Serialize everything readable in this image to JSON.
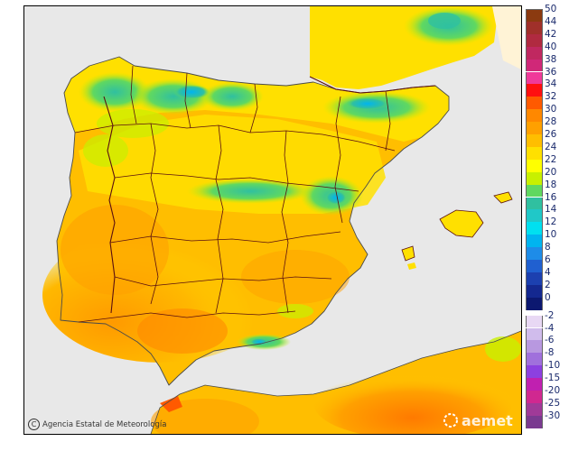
{
  "map": {
    "credit": "Agencia Estatal de Meteorología",
    "logo": "aemet",
    "copyright_symbol": "C"
  },
  "legend": {
    "positive": [
      {
        "label": "50",
        "color": "#8b3a10"
      },
      {
        "label": "44",
        "color": "#a0302a"
      },
      {
        "label": "42",
        "color": "#b02a40"
      },
      {
        "label": "40",
        "color": "#c02860"
      },
      {
        "label": "38",
        "color": "#d02878"
      },
      {
        "label": "36",
        "color": "#f03a9a"
      },
      {
        "label": "34",
        "color": "#ff1010"
      },
      {
        "label": "32",
        "color": "#ff5a00"
      },
      {
        "label": "30",
        "color": "#ff8800"
      },
      {
        "label": "28",
        "color": "#ffa000"
      },
      {
        "label": "26",
        "color": "#ffbe00"
      },
      {
        "label": "24",
        "color": "#ffe000"
      },
      {
        "label": "22",
        "color": "#ffff00"
      },
      {
        "label": "20",
        "color": "#c8f000"
      },
      {
        "label": "18",
        "color": "#60d860"
      },
      {
        "label": "16",
        "color": "#30c0a0"
      },
      {
        "label": "14",
        "color": "#20c8c8"
      },
      {
        "label": "12",
        "color": "#00e0f0"
      },
      {
        "label": "10",
        "color": "#00b4f0"
      },
      {
        "label": "8",
        "color": "#1e8ce8"
      },
      {
        "label": "6",
        "color": "#2060d0"
      },
      {
        "label": "4",
        "color": "#1c40b0"
      },
      {
        "label": "2",
        "color": "#142890"
      },
      {
        "label": "0",
        "color": "#0c1870"
      }
    ],
    "negative": [
      {
        "label": "-2",
        "color": "#e8d8f4"
      },
      {
        "label": "-4",
        "color": "#d0bcec"
      },
      {
        "label": "-6",
        "color": "#b898e0"
      },
      {
        "label": "-8",
        "color": "#a070dc"
      },
      {
        "label": "-10",
        "color": "#8c40e0"
      },
      {
        "label": "-15",
        "color": "#c020b0"
      },
      {
        "label": "-20",
        "color": "#d02890"
      },
      {
        "label": "-25",
        "color": "#a03a98"
      },
      {
        "label": "-30",
        "color": "#7a3a90"
      }
    ]
  }
}
